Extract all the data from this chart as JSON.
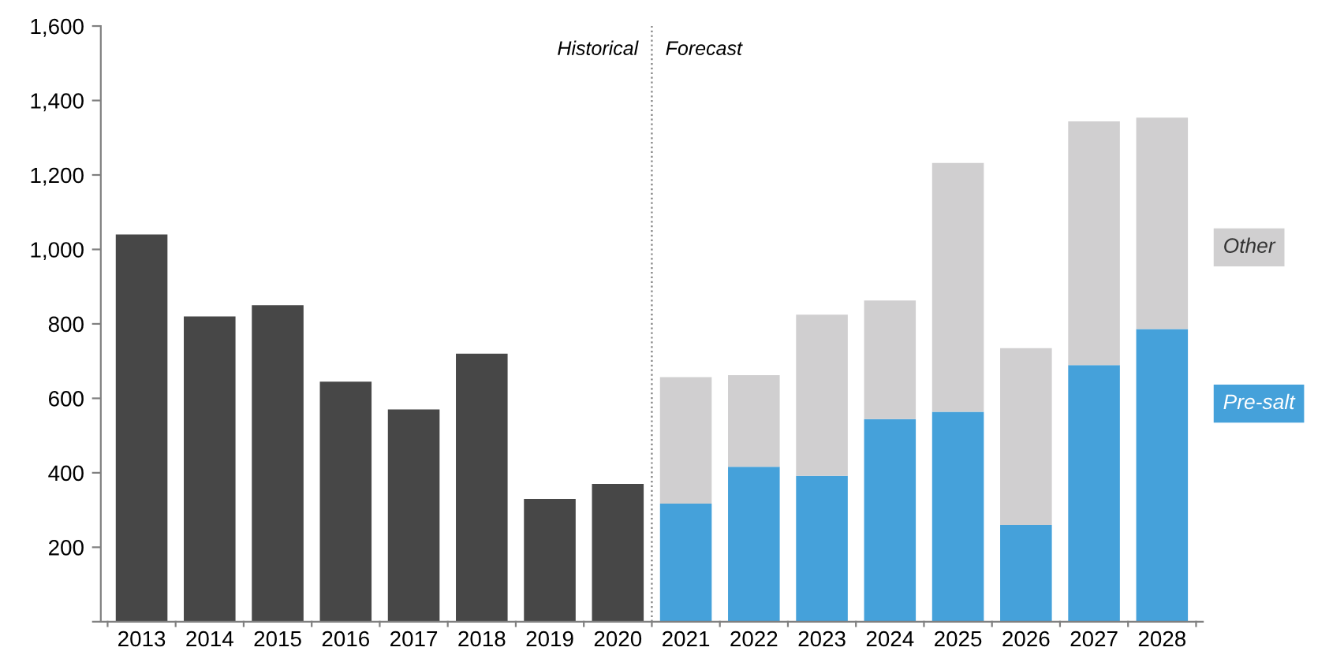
{
  "chart_data": {
    "type": "bar",
    "stacked": true,
    "categories": [
      "2013",
      "2014",
      "2015",
      "2016",
      "2017",
      "2018",
      "2019",
      "2020",
      "2021",
      "2022",
      "2023",
      "2024",
      "2025",
      "2026",
      "2027",
      "2028"
    ],
    "series": [
      {
        "color": "#474747",
        "values": [
          1040,
          820,
          850,
          645,
          570,
          720,
          330,
          370,
          null,
          null,
          null,
          null,
          null,
          null,
          null,
          null
        ]
      },
      {
        "name": "Pre-salt",
        "color": "#45a1da",
        "values": [
          null,
          null,
          null,
          null,
          null,
          null,
          null,
          null,
          317,
          416,
          392,
          544,
          564,
          260,
          689,
          786
        ]
      },
      {
        "name": "Other",
        "color": "#d0cfd0",
        "values": [
          null,
          null,
          null,
          null,
          null,
          null,
          null,
          null,
          340,
          246,
          433,
          319,
          668,
          475,
          655,
          568
        ]
      }
    ],
    "ylim": [
      0,
      1600
    ],
    "yticks": [
      {
        "value": 0,
        "label": null
      },
      {
        "value": 200,
        "label": "200"
      },
      {
        "value": 400,
        "label": "400"
      },
      {
        "value": 600,
        "label": "600"
      },
      {
        "value": 800,
        "label": "800"
      },
      {
        "value": 1000,
        "label": "1,000"
      },
      {
        "value": 1200,
        "label": "1,200"
      },
      {
        "value": 1400,
        "label": "1,400"
      },
      {
        "value": 1600,
        "label": "1,600"
      }
    ],
    "annotations": [
      "Historical",
      "Forecast"
    ],
    "legend": "right",
    "grid": false
  }
}
